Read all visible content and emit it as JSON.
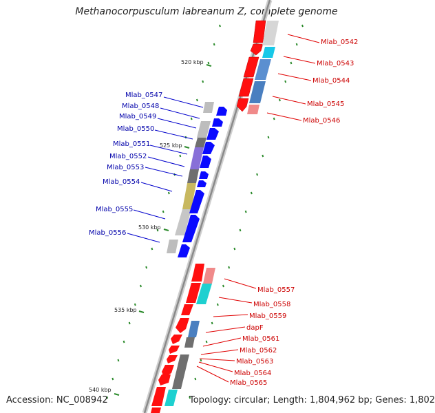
{
  "title": "Methanocorpusculum labreanum Z, complete genome",
  "footer": {
    "accession": "Accession: NC_008942",
    "summary": "Topology: circular; Length: 1,804,962 bp; Genes: 1,802"
  },
  "colors": {
    "forward": "#ff0000",
    "reverse": "#0000ff",
    "backbone": "#888888",
    "tick": "#2a8a2a"
  },
  "kbp_labels": [
    "520 kbp",
    "525 kbp",
    "530 kbp",
    "535 kbp",
    "540 kbp"
  ],
  "forward_genes": [
    "Mlab_0542",
    "Mlab_0543",
    "Mlab_0544",
    "Mlab_0545",
    "Mlab_0546",
    "Mlab_0557",
    "Mlab_0558",
    "Mlab_0559",
    "dapF",
    "Mlab_0561",
    "Mlab_0562",
    "Mlab_0563",
    "Mlab_0564",
    "Mlab_0565"
  ],
  "reverse_genes": [
    "Mlab_0547",
    "Mlab_0548",
    "Mlab_0549",
    "Mlab_0550",
    "Mlab_0551",
    "Mlab_0552",
    "Mlab_0553",
    "Mlab_0554",
    "Mlab_0555",
    "Mlab_0556"
  ]
}
